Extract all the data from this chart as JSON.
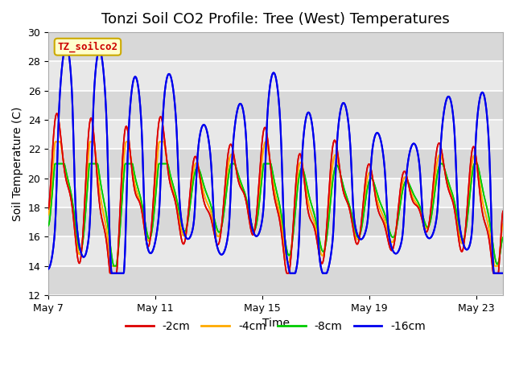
{
  "title": "Tonzi Soil CO2 Profile: Tree (West) Temperatures",
  "xlabel": "Time",
  "ylabel": "Soil Temperature (C)",
  "ylim": [
    12,
    30
  ],
  "yticks": [
    12,
    14,
    16,
    18,
    20,
    22,
    24,
    26,
    28,
    30
  ],
  "legend_labels": [
    "-2cm",
    "-4cm",
    "-8cm",
    "-16cm"
  ],
  "legend_colors": [
    "#dd0000",
    "#ffaa00",
    "#00cc00",
    "#0000ee"
  ],
  "watermark_text": "TZ_soilco2",
  "watermark_bg": "#ffffcc",
  "watermark_border": "#ccaa00",
  "plot_bg": "#e8e8e8",
  "fig_bg": "#ffffff",
  "title_fontsize": 13,
  "label_fontsize": 10,
  "tick_fontsize": 9,
  "legend_fontsize": 10,
  "x_tick_labels": [
    "May 7",
    "May 11",
    "May 15",
    "May 19",
    "May 23"
  ],
  "x_tick_positions": [
    0,
    4,
    8,
    12,
    16
  ]
}
